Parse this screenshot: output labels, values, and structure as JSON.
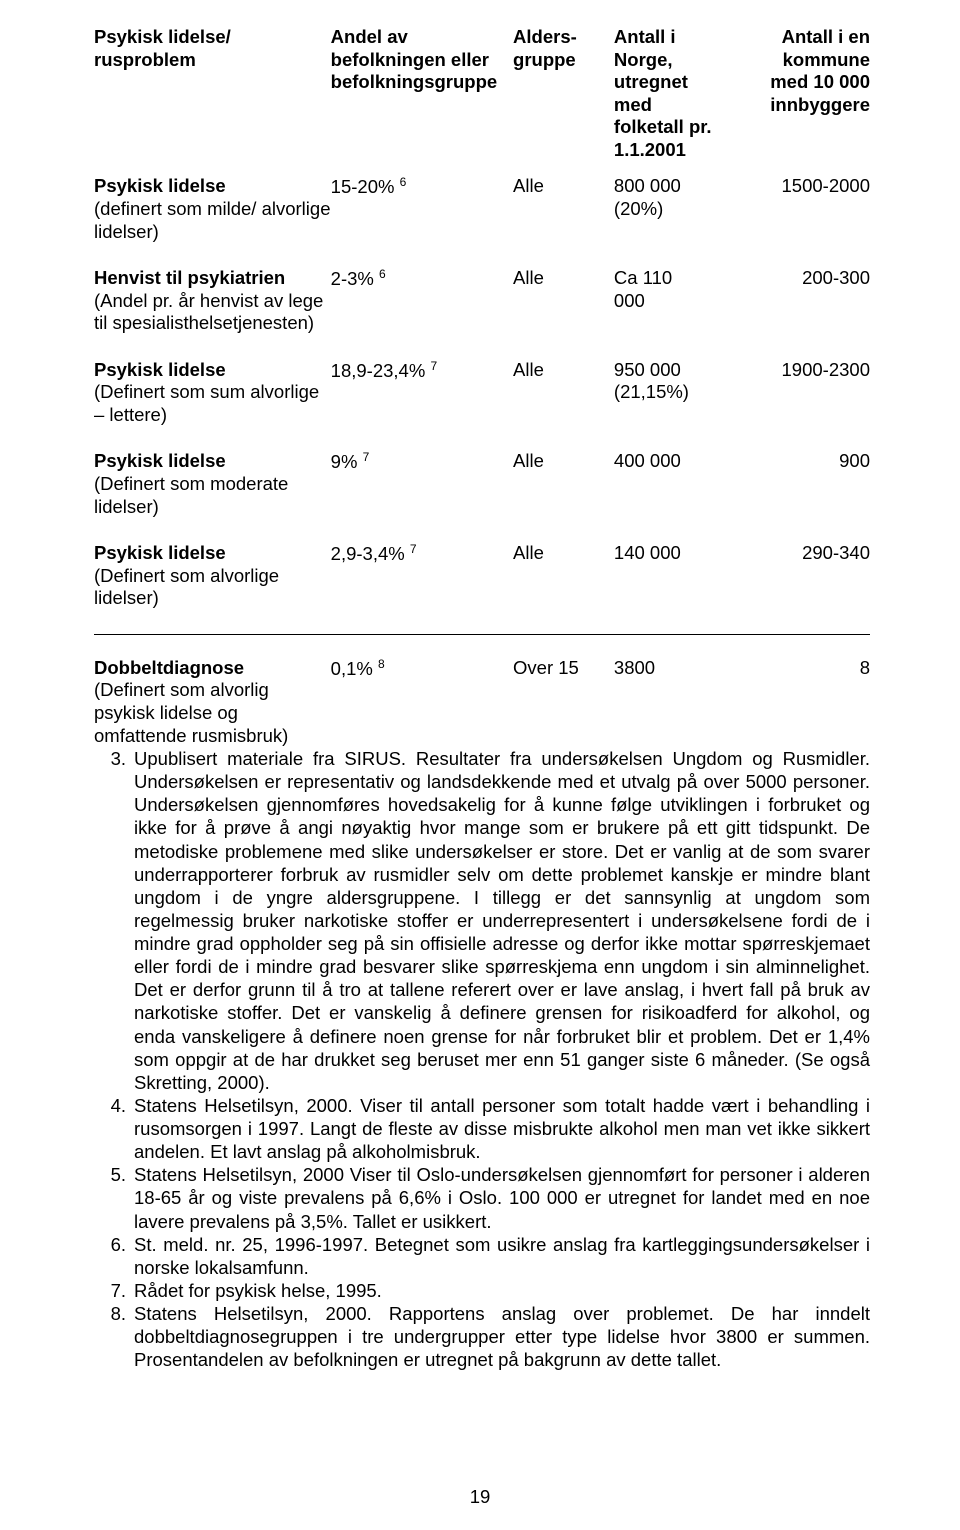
{
  "page": {
    "number": "19",
    "background_color": "#ffffff",
    "text_color": "#000000",
    "font_family": "Arial, Helvetica, sans-serif",
    "font_size_pt": 11
  },
  "table": {
    "columns": {
      "c1": "Psykisk lidelse/ rusproblem",
      "c2": "Andel av befolkningen eller befolkningsgruppe",
      "c3": "Alders-gruppe",
      "c4": "Antall i Norge, utregnet med folketall pr. 1.1.2001",
      "c5": "Antall i en kommune med 10 000 innbyggere"
    },
    "rows": [
      {
        "name": "Psykisk lidelse",
        "desc": "(definert som milde/ alvorlige lidelser)",
        "andel": "15-20%",
        "andel_sup": "6",
        "alder": "Alle",
        "antall_norge": "800 000 (20%)",
        "antall_kommune": "1500-2000"
      },
      {
        "name": "Henvist til psykiatrien",
        "desc": "(Andel pr. år henvist av lege til spesialisthelsetjenesten)",
        "andel": "2-3%",
        "andel_sup": "6",
        "alder": "Alle",
        "antall_norge": "Ca 110 000",
        "antall_kommune": "200-300"
      },
      {
        "name": "Psykisk lidelse",
        "desc": "(Definert som sum alvorlige – lettere)",
        "andel": "18,9-23,4%",
        "andel_sup": "7",
        "alder": "Alle",
        "antall_norge": "950 000 (21,15%)",
        "antall_kommune": "1900-2300"
      },
      {
        "name": "Psykisk lidelse",
        "desc": "(Definert som moderate lidelser)",
        "andel": "9%",
        "andel_sup": "7",
        "alder": "Alle",
        "antall_norge": "400 000",
        "antall_kommune": "900"
      },
      {
        "name": "Psykisk lidelse",
        "desc": "(Definert som alvorlige lidelser)",
        "andel": "2,9-3,4%",
        "andel_sup": "7",
        "alder": "Alle",
        "antall_norge": "140 000",
        "antall_kommune": "290-340"
      },
      {
        "name": "Dobbeltdiagnose",
        "desc": "(Definert som alvorlig psykisk lidelse og omfattende rusmisbruk)",
        "andel": "0,1%",
        "andel_sup": "8",
        "alder": "Over 15",
        "antall_norge": "3800",
        "antall_kommune": "8"
      }
    ]
  },
  "notes": [
    {
      "n": "3.",
      "text": "Upublisert materiale fra SIRUS. Resultater fra undersøkelsen Ungdom og Rusmidler. Undersøkelsen er representativ og landsdekkende med et utvalg på over 5000 personer. Undersøkelsen gjennomføres hovedsakelig for å kunne følge utviklingen i forbruket og ikke for å prøve å angi nøyaktig hvor mange som er brukere på ett gitt tidspunkt. De metodiske problemene med slike undersøkelser er store. Det er vanlig at de som svarer underrapporterer forbruk av rusmidler selv om dette problemet kanskje er mindre blant ungdom i de yngre aldersgruppene. I tillegg er det sannsynlig at ungdom som regelmessig bruker narkotiske stoffer er underrepresentert i undersøkelsene fordi de i mindre grad oppholder seg på sin offisielle adresse og derfor ikke mottar spørreskjemaet eller fordi de i mindre grad besvarer slike spørreskjema enn ungdom i sin alminnelighet. Det er derfor grunn til å tro at tallene referert over er lave anslag, i hvert fall på bruk av narkotiske stoffer. Det er vanskelig å definere grensen for risikoadferd for alkohol, og enda vanskeligere å definere noen grense for når forbruket blir et problem. Det er 1,4% som oppgir at de har drukket seg beruset mer enn 51 ganger siste 6 måneder. (Se også Skretting, 2000)."
    },
    {
      "n": "4.",
      "text": "Statens Helsetilsyn, 2000. Viser til antall personer som totalt hadde vært i behandling i rusomsorgen i 1997. Langt de fleste av disse misbrukte alkohol men man vet ikke sikkert andelen. Et lavt anslag på alkoholmisbruk."
    },
    {
      "n": "5.",
      "text": "Statens Helsetilsyn, 2000 Viser til Oslo-undersøkelsen gjennomført for personer i alderen 18-65 år og viste prevalens på 6,6% i Oslo. 100 000 er utregnet for landet med en noe lavere prevalens på 3,5%. Tallet er usikkert."
    },
    {
      "n": "6.",
      "text": "St. meld. nr. 25, 1996-1997. Betegnet som usikre anslag fra kartleggingsundersøkelser i norske lokalsamfunn."
    },
    {
      "n": "7.",
      "text": "Rådet for psykisk helse, 1995."
    },
    {
      "n": "8.",
      "text": "Statens Helsetilsyn, 2000. Rapportens anslag over problemet. De har inndelt dobbeltdiagnosegruppen i tre undergrupper etter type lidelse hvor 3800 er summen. Prosentandelen av befolkningen er utregnet på bakgrunn av dette tallet."
    }
  ]
}
